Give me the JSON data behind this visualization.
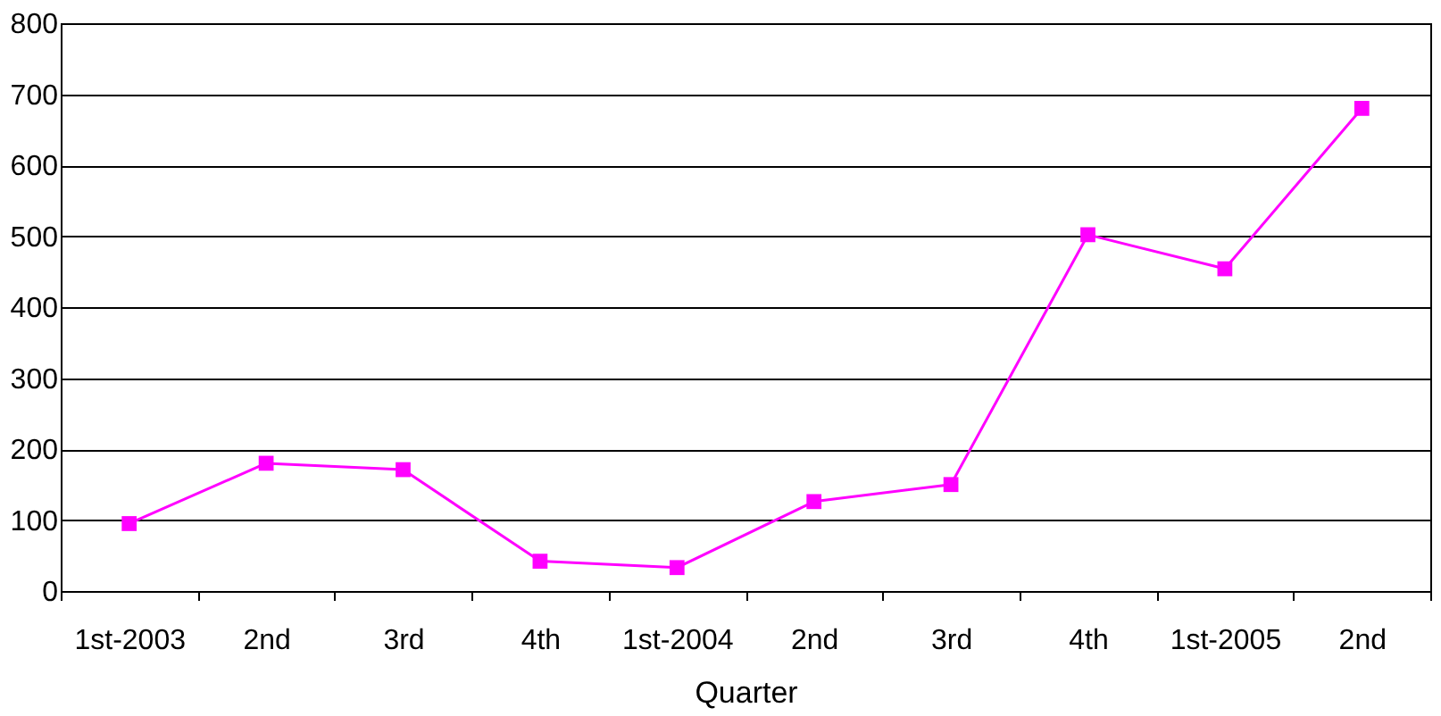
{
  "chart_data": {
    "type": "line",
    "xlabel": "Quarter",
    "categories": [
      "1st-2003",
      "2nd",
      "3rd",
      "4th",
      "1st-2004",
      "2nd",
      "3rd",
      "4th",
      "1st-2005",
      "2nd"
    ],
    "series": [
      {
        "color": "#ff00ff",
        "values": [
          95,
          180,
          171,
          42,
          33,
          126,
          150,
          502,
          454,
          680
        ]
      }
    ],
    "ylim": [
      0,
      800
    ],
    "yticks": [
      0,
      100,
      200,
      300,
      400,
      500,
      600,
      700,
      800
    ],
    "grid": "y",
    "marker": "square",
    "line_style": "solid"
  }
}
